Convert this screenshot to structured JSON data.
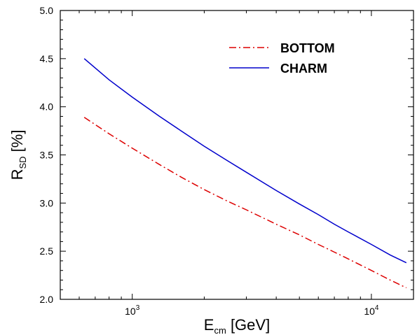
{
  "chart_data": {
    "type": "line",
    "x_scale": "log",
    "xlim": [
      500,
      15000
    ],
    "ylim": [
      2.0,
      5.0
    ],
    "yticks": [
      "2.0",
      "2.5",
      "3.0",
      "3.5",
      "4.0",
      "4.5",
      "5.0"
    ],
    "xticks": [
      {
        "value": 1000,
        "base": "10",
        "exp": "3"
      },
      {
        "value": 10000,
        "base": "10",
        "exp": "4"
      }
    ],
    "xlabel": {
      "main": "E",
      "sub": "cm",
      "unit": " [GeV]"
    },
    "ylabel": {
      "main": "R",
      "sub": "SD",
      "unit": " [%]"
    },
    "legend_position": "top-right",
    "series": [
      {
        "name": "BOTTOM",
        "color": "#dd0000",
        "style": "dash-dot",
        "x": [
          630,
          800,
          1000,
          1300,
          1600,
          2000,
          2500,
          3000,
          4000,
          5000,
          6000,
          7000,
          8000,
          10000,
          12000,
          14000
        ],
        "y": [
          3.89,
          3.72,
          3.57,
          3.4,
          3.27,
          3.14,
          3.02,
          2.93,
          2.78,
          2.67,
          2.57,
          2.49,
          2.42,
          2.3,
          2.2,
          2.12
        ]
      },
      {
        "name": "CHARM",
        "color": "#0000cc",
        "style": "solid",
        "x": [
          630,
          800,
          1000,
          1300,
          1600,
          2000,
          2500,
          3000,
          4000,
          5000,
          6000,
          7000,
          8000,
          10000,
          12000,
          14000
        ],
        "y": [
          4.5,
          4.28,
          4.1,
          3.9,
          3.75,
          3.59,
          3.44,
          3.32,
          3.13,
          2.99,
          2.88,
          2.78,
          2.7,
          2.57,
          2.46,
          2.38
        ]
      }
    ]
  }
}
